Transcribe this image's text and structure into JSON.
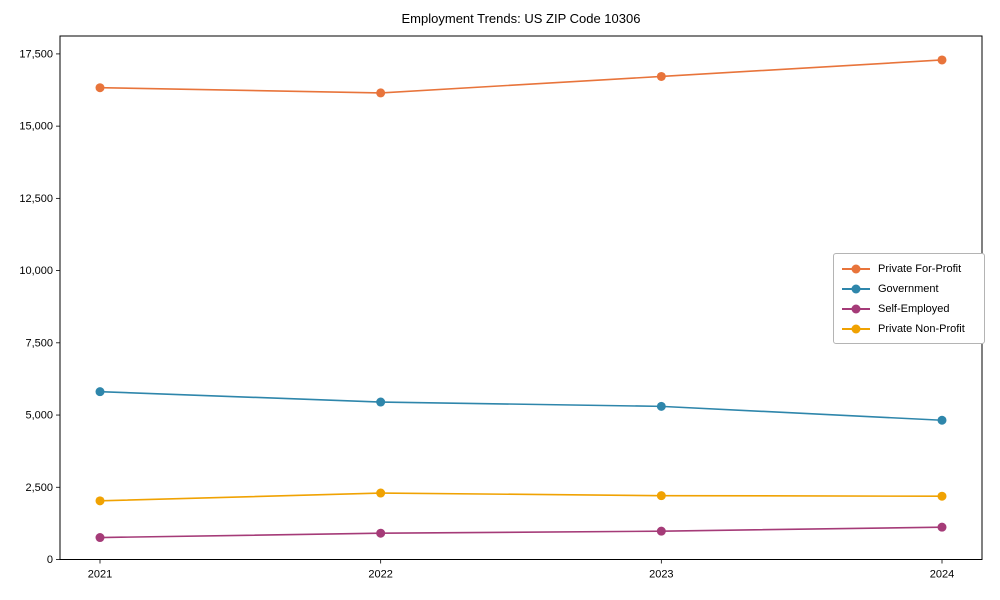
{
  "chart_data": {
    "type": "line",
    "title": "Employment Trends: US ZIP Code 10306",
    "xlabel": "",
    "ylabel": "",
    "x": [
      "2021",
      "2022",
      "2023",
      "2024"
    ],
    "series": [
      {
        "name": "Private For-Profit",
        "color": "#e8743b",
        "values": [
          16330,
          16150,
          16720,
          17290
        ]
      },
      {
        "name": "Government",
        "color": "#2e86ab",
        "values": [
          5810,
          5450,
          5300,
          4820
        ]
      },
      {
        "name": "Self-Employed",
        "color": "#a53b78",
        "values": [
          760,
          910,
          980,
          1120
        ]
      },
      {
        "name": "Private Non-Profit",
        "color": "#f0a202",
        "values": [
          2030,
          2300,
          2210,
          2190
        ]
      }
    ],
    "ylim": [
      0,
      18120
    ],
    "yticks": [
      0,
      2500,
      5000,
      7500,
      10000,
      12500,
      15000,
      17500
    ],
    "grid": false,
    "legend_position": "center-right",
    "marker": "circle",
    "axis_color": "#000000",
    "background_color": "#ffffff"
  }
}
